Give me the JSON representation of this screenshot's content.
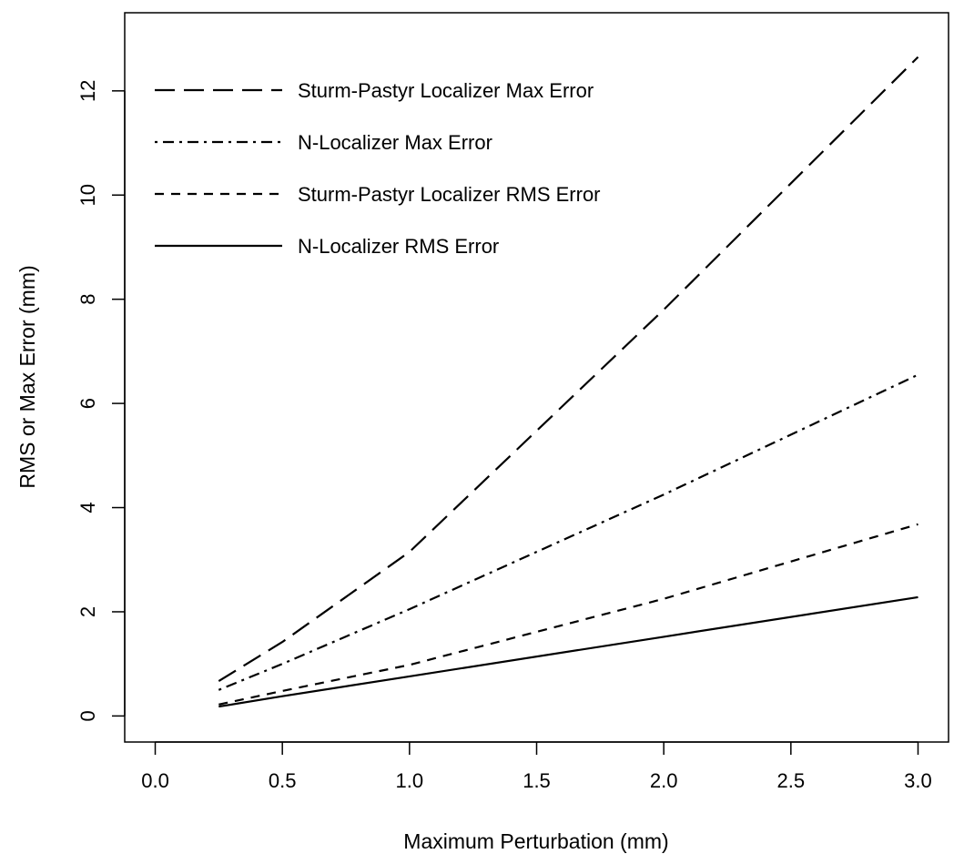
{
  "chart_data": {
    "type": "line",
    "title": "",
    "xlabel": "Maximum Perturbation (mm)",
    "ylabel": "RMS or Max Error (mm)",
    "xlim": [
      -0.12,
      3.12
    ],
    "ylim": [
      -0.5,
      13.5
    ],
    "x_ticks": [
      "0.0",
      "0.5",
      "1.0",
      "1.5",
      "2.0",
      "2.5",
      "3.0"
    ],
    "x_tick_values": [
      0.0,
      0.5,
      1.0,
      1.5,
      2.0,
      2.5,
      3.0
    ],
    "y_ticks": [
      "0",
      "2",
      "4",
      "6",
      "8",
      "10",
      "12"
    ],
    "y_tick_values": [
      0,
      2,
      4,
      6,
      8,
      10,
      12
    ],
    "grid": false,
    "legend_position": "top-left",
    "x": [
      0.25,
      0.5,
      1.0,
      2.0,
      3.0
    ],
    "series": [
      {
        "name": "Sturm-Pastyr Localizer Max Error",
        "style": "longdash",
        "values": [
          0.67,
          1.42,
          3.15,
          7.8,
          12.65
        ]
      },
      {
        "name": "N-Localizer Max Error",
        "style": "dotdash",
        "values": [
          0.5,
          1.0,
          2.05,
          4.25,
          6.55
        ]
      },
      {
        "name": "Sturm-Pastyr Localizer RMS Error",
        "style": "dashed",
        "values": [
          0.22,
          0.48,
          0.98,
          2.25,
          3.68
        ]
      },
      {
        "name": "N-Localizer RMS Error",
        "style": "solid",
        "values": [
          0.18,
          0.38,
          0.76,
          1.52,
          2.28
        ]
      }
    ]
  }
}
